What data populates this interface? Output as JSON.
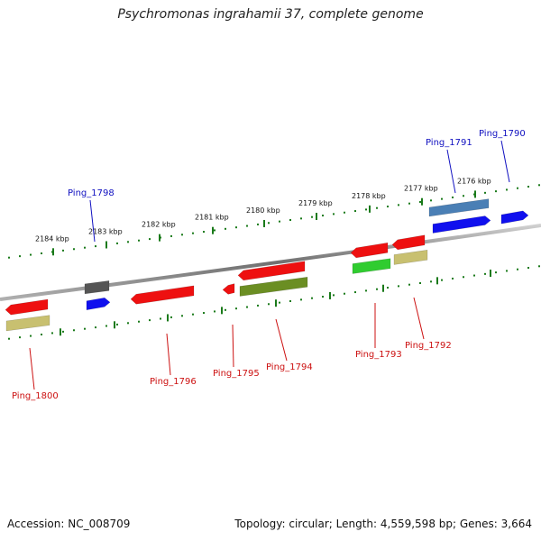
{
  "title": "Psychromonas ingrahamii 37, complete genome",
  "footer": {
    "accession": "Accession: NC_008709",
    "summary": "Topology: circular; Length: 4,559,598 bp; Genes: 3,664"
  },
  "colors": {
    "backbone": "#8c8c8c",
    "tick": "#1a7a1a",
    "forward_label": "#1010c0",
    "reverse_label": "#cc1010"
  },
  "ticks": [
    "2184 kbp",
    "2183 kbp",
    "2182 kbp",
    "2181 kbp",
    "2180 kbp",
    "2179 kbp",
    "2178 kbp",
    "2177 kbp",
    "2176 kbp"
  ],
  "genes": [
    {
      "label": "Ping_1790",
      "strand": "forward"
    },
    {
      "label": "Ping_1791",
      "strand": "forward"
    },
    {
      "label": "Ping_1792",
      "strand": "reverse"
    },
    {
      "label": "Ping_1793",
      "strand": "reverse"
    },
    {
      "label": "Ping_1794",
      "strand": "reverse"
    },
    {
      "label": "Ping_1795",
      "strand": "reverse"
    },
    {
      "label": "Ping_1796",
      "strand": "reverse"
    },
    {
      "label": "Ping_1798",
      "strand": "forward"
    },
    {
      "label": "Ping_1800",
      "strand": "reverse"
    }
  ]
}
